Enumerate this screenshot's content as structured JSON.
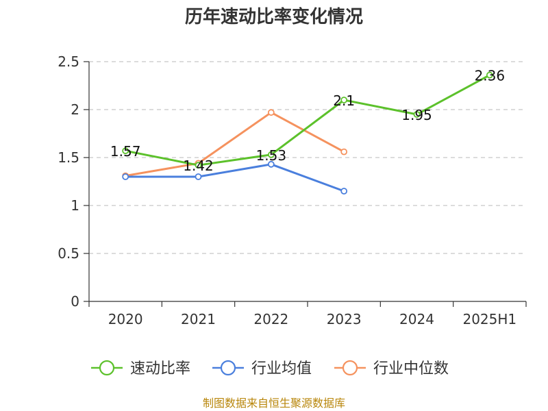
{
  "chart_data": {
    "type": "line",
    "title": "历年速动比率变化情况",
    "categories": [
      "2020",
      "2021",
      "2022",
      "2023",
      "2024",
      "2025H1"
    ],
    "ylim": [
      0,
      2.5
    ],
    "yticks": [
      0,
      0.5,
      1,
      1.5,
      2,
      2.5
    ],
    "ytick_labels": [
      "0",
      "0.5",
      "1",
      "1.5",
      "2",
      "2.5"
    ],
    "grid": true,
    "legend_position": "bottom",
    "series": [
      {
        "name": "速动比率",
        "color": "#5cc12b",
        "values": [
          1.57,
          1.42,
          1.53,
          2.1,
          1.95,
          2.36
        ],
        "labels": [
          "1.57",
          "1.42",
          "1.53",
          "2.1",
          "1.95",
          "2.36"
        ]
      },
      {
        "name": "行业均值",
        "color": "#4a7fdd",
        "values": [
          1.3,
          1.3,
          1.43,
          1.15,
          null,
          null
        ]
      },
      {
        "name": "行业中位数",
        "color": "#f5925e",
        "values": [
          1.31,
          1.44,
          1.97,
          1.56,
          null,
          null
        ]
      }
    ]
  },
  "source_text": "制图数据来自恒生聚源数据库"
}
